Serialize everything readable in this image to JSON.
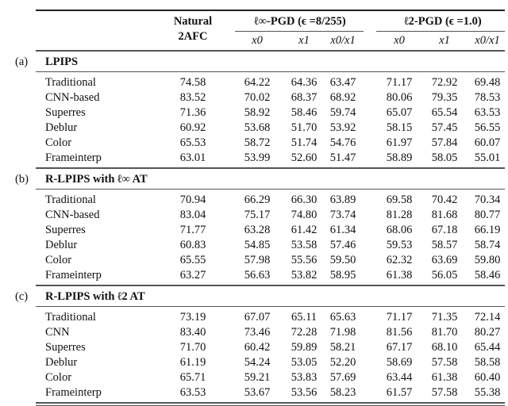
{
  "header": {
    "natural": "Natural",
    "natural_sub": "2AFC",
    "linf_group": "ℓ∞-PGD (ϵ =8/255)",
    "l2_group": "ℓ2-PGD (ϵ =1.0)",
    "subcols": [
      "x0",
      "x1",
      "x0/x1",
      "x0",
      "x1",
      "x0/x1"
    ]
  },
  "sections": [
    {
      "tag": "(a)",
      "title": "LPIPS",
      "rows": [
        {
          "name": "Traditional",
          "values": [
            "74.58",
            "64.22",
            "64.36",
            "63.47",
            "71.17",
            "72.92",
            "69.48"
          ]
        },
        {
          "name": "CNN-based",
          "values": [
            "83.52",
            "70.02",
            "68.37",
            "68.92",
            "80.06",
            "79.35",
            "78.53"
          ]
        },
        {
          "name": "Superres",
          "values": [
            "71.36",
            "58.92",
            "58.46",
            "59.74",
            "65.07",
            "65.54",
            "63.53"
          ]
        },
        {
          "name": "Deblur",
          "values": [
            "60.92",
            "53.68",
            "51.70",
            "53.92",
            "58.15",
            "57.45",
            "56.55"
          ]
        },
        {
          "name": "Color",
          "values": [
            "65.53",
            "58.72",
            "51.74",
            "54.76",
            "61.97",
            "57.84",
            "60.07"
          ]
        },
        {
          "name": "Frameinterp",
          "values": [
            "63.01",
            "53.99",
            "52.60",
            "51.47",
            "58.89",
            "58.05",
            "55.01"
          ]
        }
      ]
    },
    {
      "tag": "(b)",
      "title": "R-LPIPS with ℓ∞ AT",
      "rows": [
        {
          "name": "Traditional",
          "values": [
            "70.94",
            "66.29",
            "66.30",
            "63.89",
            "69.58",
            "70.42",
            "70.34"
          ]
        },
        {
          "name": "CNN-based",
          "values": [
            "83.04",
            "75.17",
            "74.80",
            "73.74",
            "81.28",
            "81.68",
            "80.77"
          ]
        },
        {
          "name": "Superres",
          "values": [
            "71.77",
            "63.28",
            "61.42",
            "61.34",
            "68.06",
            "67.18",
            "66.19"
          ]
        },
        {
          "name": "Deblur",
          "values": [
            "60.83",
            "54.85",
            "53.58",
            "57.46",
            "59.53",
            "58.57",
            "58.74"
          ]
        },
        {
          "name": "Color",
          "values": [
            "65.55",
            "57.98",
            "55.56",
            "59.50",
            "62.32",
            "63.69",
            "59.80"
          ]
        },
        {
          "name": "Frameinterp",
          "values": [
            "63.27",
            "56.63",
            "53.82",
            "58.95",
            "61.38",
            "56.05",
            "58.46"
          ]
        }
      ]
    },
    {
      "tag": "(c)",
      "title": "R-LPIPS with ℓ2 AT",
      "rows": [
        {
          "name": "Traditional",
          "values": [
            "73.19",
            "67.07",
            "65.11",
            "65.63",
            "71.17",
            "71.35",
            "72.14"
          ]
        },
        {
          "name": "CNN",
          "values": [
            "83.40",
            "73.46",
            "72.28",
            "71.98",
            "81.56",
            "81.70",
            "80.27"
          ]
        },
        {
          "name": "Superres",
          "values": [
            "71.70",
            "60.42",
            "59.89",
            "58.21",
            "67.17",
            "68.10",
            "65.44"
          ]
        },
        {
          "name": "Deblur",
          "values": [
            "61.19",
            "54.24",
            "53.05",
            "52.20",
            "58.69",
            "57.58",
            "58.58"
          ]
        },
        {
          "name": "Color",
          "values": [
            "65.71",
            "59.21",
            "53.83",
            "57.69",
            "63.44",
            "61.38",
            "60.40"
          ]
        },
        {
          "name": "Frameinterp",
          "values": [
            "63.53",
            "53.67",
            "53.56",
            "58.23",
            "61.57",
            "57.58",
            "55.38"
          ]
        }
      ]
    }
  ]
}
